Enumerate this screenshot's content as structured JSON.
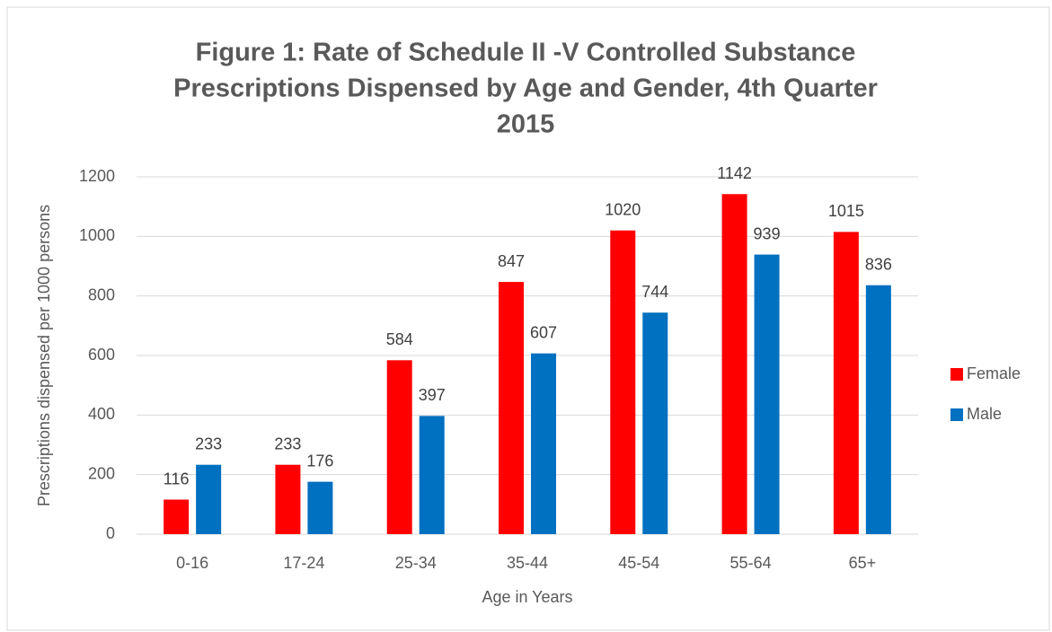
{
  "chart_data": {
    "type": "bar",
    "title": [
      "Figure 1:  Rate of Schedule II -V Controlled Substance",
      "Prescriptions Dispensed by Age and Gender, 4th Quarter",
      "2015"
    ],
    "x_label": "Age in Years",
    "y_label": "Prescriptions dispensed per 1000 persons",
    "categories": [
      "0-16",
      "17-24",
      "25-34",
      "35-44",
      "45-54",
      "55-64",
      "65+"
    ],
    "series": [
      {
        "name": "Female",
        "color": "#ff0000",
        "values": [
          116,
          233,
          584,
          847,
          1020,
          1142,
          1015
        ]
      },
      {
        "name": "Male",
        "color": "#0070c0",
        "values": [
          233,
          176,
          397,
          607,
          744,
          939,
          836
        ]
      }
    ],
    "ylim": [
      0,
      1200
    ],
    "yticks": [
      0,
      200,
      400,
      600,
      800,
      1000,
      1200
    ],
    "grid": true,
    "legend": "right"
  }
}
